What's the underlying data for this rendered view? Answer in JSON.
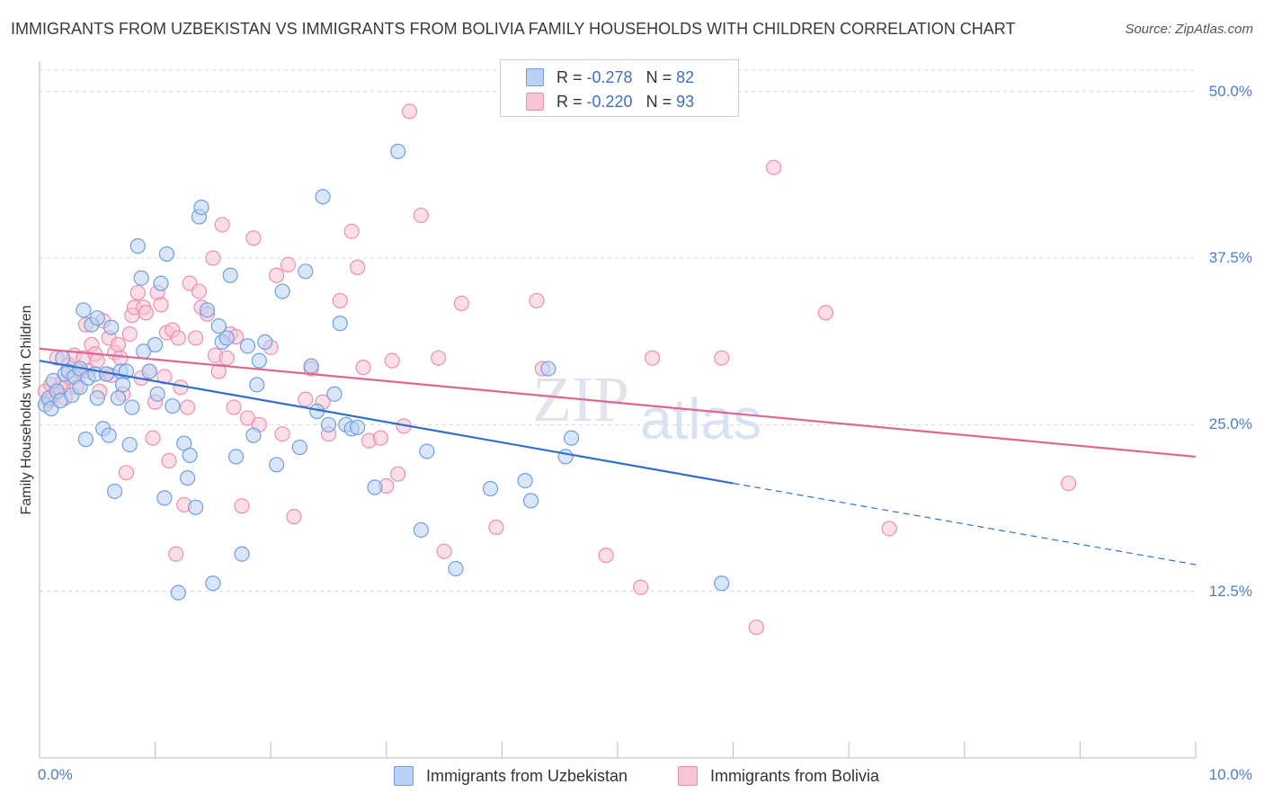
{
  "chart_data": {
    "type": "scatter",
    "title": "IMMIGRANTS FROM UZBEKISTAN VS IMMIGRANTS FROM BOLIVIA FAMILY HOUSEHOLDS WITH CHILDREN CORRELATION CHART",
    "source": "Source: ZipAtlas.com",
    "ylabel": "Family Households with Children",
    "xlim": [
      0,
      10
    ],
    "ylim": [
      0,
      52
    ],
    "x_tick_labels": [
      "0.0%",
      "10.0%"
    ],
    "y_ticks": [
      {
        "value": 12.5,
        "label": "12.5%"
      },
      {
        "value": 25,
        "label": "25.0%"
      },
      {
        "value": 37.5,
        "label": "37.5%"
      },
      {
        "value": 50,
        "label": "50.0%"
      }
    ],
    "watermark": "ZIPatlas",
    "legend_top": [
      {
        "r_label": "R =",
        "r_value": "-0.278",
        "n_label": "N =",
        "n_value": "82"
      },
      {
        "r_label": "R =",
        "r_value": "-0.220",
        "n_label": "N =",
        "n_value": "93"
      }
    ],
    "series": [
      {
        "name": "Immigrants from Uzbekistan",
        "color": "#6f9fe0",
        "fill": "#b9d1f4",
        "line_color": "#2f6fd0",
        "trend": {
          "x0": 0.0,
          "y0": 29.8,
          "x1": 6.0,
          "y1": 20.6,
          "dash_to_x": 10.0,
          "dash_to_y": 14.5
        },
        "points": [
          [
            0.05,
            26.5
          ],
          [
            0.08,
            27.0
          ],
          [
            0.1,
            26.2
          ],
          [
            0.12,
            28.3
          ],
          [
            0.15,
            27.5
          ],
          [
            0.18,
            26.8
          ],
          [
            0.2,
            30.0
          ],
          [
            0.22,
            28.8
          ],
          [
            0.25,
            29.0
          ],
          [
            0.28,
            27.2
          ],
          [
            0.3,
            28.6
          ],
          [
            0.35,
            29.2
          ],
          [
            0.35,
            27.8
          ],
          [
            0.38,
            33.6
          ],
          [
            0.4,
            23.9
          ],
          [
            0.42,
            28.5
          ],
          [
            0.45,
            32.5
          ],
          [
            0.48,
            28.8
          ],
          [
            0.5,
            27.0
          ],
          [
            0.5,
            33.0
          ],
          [
            0.55,
            24.7
          ],
          [
            0.58,
            28.8
          ],
          [
            0.6,
            24.2
          ],
          [
            0.62,
            32.3
          ],
          [
            0.65,
            20.0
          ],
          [
            0.68,
            27.0
          ],
          [
            0.7,
            29.0
          ],
          [
            0.72,
            28.0
          ],
          [
            0.75,
            29.0
          ],
          [
            0.78,
            23.5
          ],
          [
            0.8,
            26.3
          ],
          [
            0.85,
            38.4
          ],
          [
            0.88,
            36.0
          ],
          [
            0.9,
            30.5
          ],
          [
            0.95,
            29.0
          ],
          [
            1.0,
            31.0
          ],
          [
            1.02,
            27.3
          ],
          [
            1.05,
            35.6
          ],
          [
            1.08,
            19.5
          ],
          [
            1.1,
            37.8
          ],
          [
            1.15,
            26.4
          ],
          [
            1.2,
            12.4
          ],
          [
            1.25,
            23.6
          ],
          [
            1.28,
            21.0
          ],
          [
            1.3,
            22.7
          ],
          [
            1.35,
            18.8
          ],
          [
            1.38,
            40.6
          ],
          [
            1.4,
            41.3
          ],
          [
            1.45,
            33.6
          ],
          [
            1.5,
            13.1
          ],
          [
            1.55,
            32.4
          ],
          [
            1.58,
            31.2
          ],
          [
            1.62,
            31.5
          ],
          [
            1.65,
            36.2
          ],
          [
            1.7,
            22.6
          ],
          [
            1.75,
            15.3
          ],
          [
            1.8,
            30.9
          ],
          [
            1.85,
            24.2
          ],
          [
            1.88,
            28.0
          ],
          [
            1.9,
            29.8
          ],
          [
            1.95,
            31.2
          ],
          [
            2.05,
            22.0
          ],
          [
            2.1,
            35.0
          ],
          [
            2.25,
            23.3
          ],
          [
            2.3,
            36.5
          ],
          [
            2.35,
            29.4
          ],
          [
            2.4,
            26.0
          ],
          [
            2.45,
            42.1
          ],
          [
            2.5,
            25.0
          ],
          [
            2.55,
            27.3
          ],
          [
            2.6,
            32.6
          ],
          [
            2.65,
            25.0
          ],
          [
            2.7,
            24.7
          ],
          [
            2.75,
            24.8
          ],
          [
            2.9,
            20.3
          ],
          [
            3.1,
            45.5
          ],
          [
            3.3,
            17.1
          ],
          [
            3.35,
            23.0
          ],
          [
            3.6,
            14.2
          ],
          [
            3.9,
            20.2
          ],
          [
            4.2,
            20.8
          ],
          [
            4.25,
            19.3
          ],
          [
            4.4,
            29.2
          ],
          [
            4.55,
            22.6
          ],
          [
            4.6,
            24.0
          ],
          [
            5.9,
            13.1
          ]
        ]
      },
      {
        "name": "Immigrants from Bolivia",
        "color": "#ec8fae",
        "fill": "#f8c3d4",
        "line_color": "#e06590",
        "trend": {
          "x0": 0.0,
          "y0": 30.7,
          "x1": 10.0,
          "y1": 22.6
        },
        "points": [
          [
            0.05,
            27.5
          ],
          [
            0.08,
            26.8
          ],
          [
            0.1,
            28.0
          ],
          [
            0.12,
            27.2
          ],
          [
            0.15,
            30.0
          ],
          [
            0.18,
            27.7
          ],
          [
            0.2,
            28.2
          ],
          [
            0.22,
            27.0
          ],
          [
            0.25,
            29.5
          ],
          [
            0.28,
            28.5
          ],
          [
            0.3,
            30.2
          ],
          [
            0.32,
            27.8
          ],
          [
            0.35,
            29.0
          ],
          [
            0.38,
            30.0
          ],
          [
            0.4,
            32.5
          ],
          [
            0.42,
            29.0
          ],
          [
            0.45,
            31.0
          ],
          [
            0.48,
            30.3
          ],
          [
            0.5,
            29.8
          ],
          [
            0.52,
            27.5
          ],
          [
            0.55,
            32.8
          ],
          [
            0.58,
            28.8
          ],
          [
            0.6,
            31.5
          ],
          [
            0.62,
            28.7
          ],
          [
            0.65,
            30.4
          ],
          [
            0.68,
            31.0
          ],
          [
            0.7,
            30.0
          ],
          [
            0.72,
            27.3
          ],
          [
            0.75,
            21.4
          ],
          [
            0.78,
            31.8
          ],
          [
            0.8,
            33.2
          ],
          [
            0.82,
            33.8
          ],
          [
            0.85,
            34.9
          ],
          [
            0.88,
            28.5
          ],
          [
            0.9,
            33.8
          ],
          [
            0.92,
            33.4
          ],
          [
            0.95,
            29.0
          ],
          [
            0.98,
            24.0
          ],
          [
            1.0,
            26.7
          ],
          [
            1.02,
            34.9
          ],
          [
            1.05,
            34.0
          ],
          [
            1.08,
            28.6
          ],
          [
            1.1,
            31.9
          ],
          [
            1.12,
            22.3
          ],
          [
            1.15,
            32.1
          ],
          [
            1.18,
            15.3
          ],
          [
            1.2,
            31.5
          ],
          [
            1.22,
            27.8
          ],
          [
            1.25,
            19.0
          ],
          [
            1.28,
            26.3
          ],
          [
            1.3,
            35.6
          ],
          [
            1.35,
            31.5
          ],
          [
            1.38,
            35.0
          ],
          [
            1.4,
            33.8
          ],
          [
            1.45,
            33.3
          ],
          [
            1.5,
            37.5
          ],
          [
            1.52,
            30.2
          ],
          [
            1.55,
            29.0
          ],
          [
            1.58,
            40.0
          ],
          [
            1.62,
            30.0
          ],
          [
            1.65,
            31.8
          ],
          [
            1.68,
            26.3
          ],
          [
            1.7,
            31.6
          ],
          [
            1.75,
            18.9
          ],
          [
            1.8,
            25.5
          ],
          [
            1.85,
            39.0
          ],
          [
            1.9,
            25.0
          ],
          [
            2.0,
            30.8
          ],
          [
            2.05,
            36.2
          ],
          [
            2.1,
            24.3
          ],
          [
            2.15,
            37.0
          ],
          [
            2.2,
            18.1
          ],
          [
            2.3,
            26.9
          ],
          [
            2.35,
            29.2
          ],
          [
            2.45,
            26.7
          ],
          [
            2.5,
            24.3
          ],
          [
            2.6,
            34.3
          ],
          [
            2.7,
            39.5
          ],
          [
            2.75,
            36.8
          ],
          [
            2.8,
            29.3
          ],
          [
            2.85,
            23.8
          ],
          [
            2.95,
            24.0
          ],
          [
            3.0,
            20.4
          ],
          [
            3.05,
            29.8
          ],
          [
            3.1,
            21.3
          ],
          [
            3.15,
            24.9
          ],
          [
            3.2,
            48.5
          ],
          [
            3.3,
            40.7
          ],
          [
            3.45,
            30.0
          ],
          [
            3.5,
            15.5
          ],
          [
            3.65,
            34.1
          ],
          [
            3.95,
            17.3
          ],
          [
            4.3,
            34.3
          ],
          [
            4.35,
            29.2
          ],
          [
            4.9,
            15.2
          ],
          [
            5.2,
            12.8
          ],
          [
            5.3,
            30.0
          ],
          [
            5.9,
            30.0
          ],
          [
            6.2,
            9.8
          ],
          [
            6.35,
            44.3
          ],
          [
            6.8,
            33.4
          ],
          [
            7.35,
            17.2
          ],
          [
            8.9,
            20.6
          ]
        ]
      }
    ]
  }
}
